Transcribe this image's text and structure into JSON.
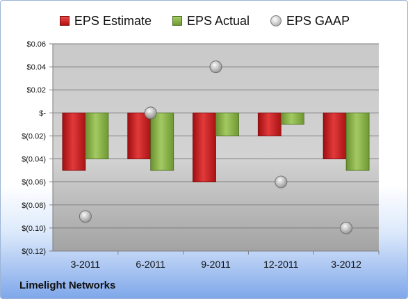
{
  "company": "Limelight Networks",
  "chart_data": {
    "type": "bar",
    "categories": [
      "3-2011",
      "6-2011",
      "9-2011",
      "12-2011",
      "3-2012"
    ],
    "series": [
      {
        "name": "EPS Estimate",
        "kind": "bar",
        "color": "#c4181a",
        "values": [
          -0.05,
          -0.04,
          -0.06,
          -0.02,
          -0.04
        ]
      },
      {
        "name": "EPS Actual",
        "kind": "bar",
        "color": "#86b040",
        "values": [
          -0.04,
          -0.05,
          -0.02,
          -0.01,
          -0.05
        ]
      },
      {
        "name": "EPS GAAP",
        "kind": "marker",
        "color": "#b0b0b0",
        "values": [
          -0.09,
          0.0,
          0.04,
          -0.06,
          -0.1
        ]
      }
    ],
    "ylim": [
      -0.12,
      0.06
    ],
    "yticks": [
      0.06,
      0.04,
      0.02,
      0,
      -0.02,
      -0.04,
      -0.06,
      -0.08,
      -0.1,
      -0.12
    ],
    "ytick_labels": [
      "$0.06",
      "$0.04",
      "$0.02",
      "$-",
      "$(0.02)",
      "$(0.04)",
      "$(0.06)",
      "$(0.08)",
      "$(0.10)",
      "$(0.12)"
    ],
    "grid": true,
    "legend_position": "top"
  }
}
